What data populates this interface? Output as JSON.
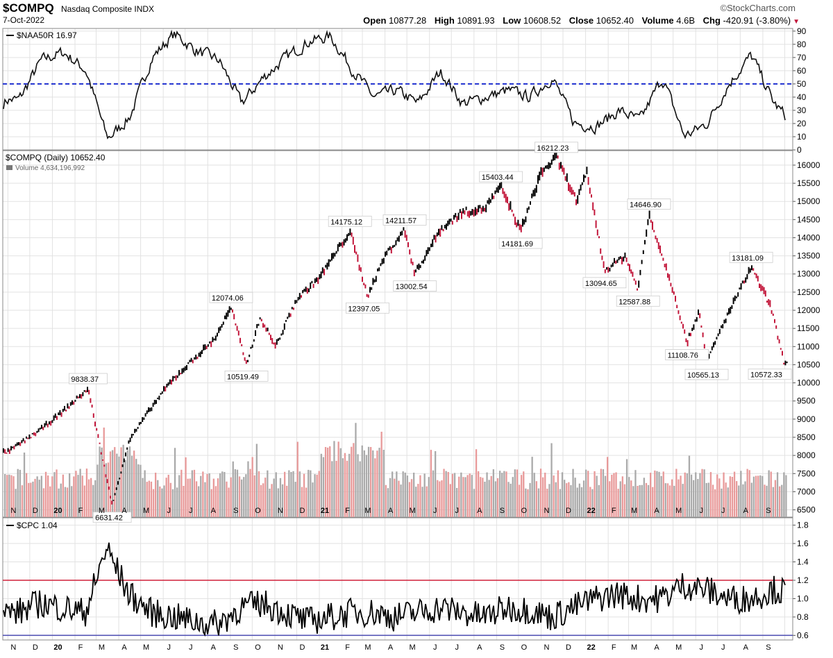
{
  "header": {
    "symbol": "$COMPQ",
    "name": "Nasdaq Composite INDX",
    "date": "7-Oct-2022",
    "brand": "©StockCharts.com",
    "open_label": "Open",
    "open": "10877.28",
    "high_label": "High",
    "high": "10891.93",
    "low_label": "Low",
    "low": "10608.52",
    "close_label": "Close",
    "close": "10652.40",
    "volume_label": "Volume",
    "volume": "4.6B",
    "chg_label": "Chg",
    "chg": "-420.91 (-3.80%)"
  },
  "colors": {
    "up": "#000000",
    "down": "#c2163a",
    "vol_up": "#aaaaaa",
    "vol_down": "#e89a9a",
    "ref_blue": "#1f2fd0",
    "ref_red": "#d0203a",
    "ref_navy": "#4a4ab0",
    "grid": "#e2e2e2"
  },
  "chart_data": [
    {
      "type": "line",
      "legend": "$NAA50R 16.97",
      "y_ticks": [
        0,
        10,
        20,
        30,
        40,
        50,
        60,
        70,
        80,
        90
      ],
      "ylim": [
        0,
        92
      ],
      "reference_line": 50,
      "x": [
        "2019-11",
        "2019-12",
        "2020-01",
        "2020-02",
        "2020-03",
        "2020-04",
        "2020-05",
        "2020-06",
        "2020-07",
        "2020-08",
        "2020-09",
        "2020-10",
        "2020-11",
        "2020-12",
        "2021-01",
        "2021-02",
        "2021-03",
        "2021-04",
        "2021-05",
        "2021-06",
        "2021-07",
        "2021-08",
        "2021-09",
        "2021-10",
        "2021-11",
        "2021-12",
        "2022-01",
        "2022-02",
        "2022-03",
        "2022-04",
        "2022-05",
        "2022-06",
        "2022-07",
        "2022-08",
        "2022-09",
        "2022-10"
      ],
      "values": [
        38,
        68,
        74,
        60,
        8,
        25,
        70,
        88,
        75,
        68,
        35,
        55,
        70,
        82,
        86,
        60,
        40,
        45,
        35,
        60,
        35,
        40,
        45,
        40,
        55,
        20,
        18,
        30,
        22,
        55,
        10,
        20,
        50,
        72,
        35,
        17
      ]
    },
    {
      "type": "line",
      "legend": "$COMPQ (Daily) 10652.40",
      "sublegend": "Volume 4,634,196,992",
      "y_ticks": [
        6500,
        7000,
        7500,
        8000,
        8500,
        9000,
        9500,
        10000,
        10500,
        11000,
        11500,
        12000,
        12500,
        13000,
        13500,
        14000,
        14500,
        15000,
        15500,
        16000
      ],
      "ylim": [
        6300,
        16400
      ],
      "x": [
        "2019-11-01",
        "2019-12-15",
        "2020-01-15",
        "2020-02-19",
        "2020-03-23",
        "2020-04-15",
        "2020-05-15",
        "2020-06-10",
        "2020-07-10",
        "2020-08-10",
        "2020-09-02",
        "2020-09-23",
        "2020-10-12",
        "2020-11-02",
        "2020-12-01",
        "2021-01-01",
        "2021-02-12",
        "2021-03-08",
        "2021-04-01",
        "2021-04-28",
        "2021-05-12",
        "2021-06-15",
        "2021-07-15",
        "2021-08-15",
        "2021-09-07",
        "2021-10-04",
        "2021-11-01",
        "2021-11-22",
        "2021-12-20",
        "2022-01-03",
        "2022-01-27",
        "2022-02-24",
        "2022-03-14",
        "2022-03-29",
        "2022-05-02",
        "2022-05-20",
        "2022-06-06",
        "2022-06-16",
        "2022-07-08",
        "2022-08-16",
        "2022-09-12",
        "2022-09-30",
        "2022-10-07"
      ],
      "values": [
        8100,
        8700,
        9200,
        9838.37,
        6631.42,
        8400,
        9300,
        10000,
        10600,
        11200,
        12074.06,
        10519.49,
        11800,
        11000,
        12300,
        12900,
        14175.12,
        12397.05,
        13500,
        14211.57,
        13002.54,
        14200,
        14700,
        14800,
        15403.44,
        14181.69,
        15800,
        16212.23,
        15000,
        15800,
        13094.65,
        13500,
        12587.88,
        14646.9,
        12500,
        11108.76,
        12000,
        10565.13,
        11600,
        13181.09,
        12100,
        10572.33,
        10652.4
      ],
      "annotations": [
        "9838.37",
        "6631.42",
        "12074.06",
        "10519.49",
        "14175.12",
        "12397.05",
        "14211.57",
        "13002.54",
        "15403.44",
        "14181.69",
        "16212.23",
        "13094.65",
        "12587.88",
        "14646.90",
        "11108.76",
        "10565.13",
        "13181.09",
        "10572.33"
      ]
    },
    {
      "type": "line",
      "legend": "$CPC 1.04",
      "y_ticks": [
        0.6,
        0.8,
        1.0,
        1.2,
        1.4,
        1.6,
        1.8
      ],
      "ylim": [
        0.55,
        1.88
      ],
      "reference_lines": [
        1.2,
        0.6
      ],
      "x": [
        "2019-11",
        "2019-12",
        "2020-01",
        "2020-02",
        "2020-03",
        "2020-04",
        "2020-05",
        "2020-06",
        "2020-07",
        "2020-08",
        "2020-09",
        "2020-10",
        "2020-11",
        "2020-12",
        "2021-01",
        "2021-02",
        "2021-03",
        "2021-04",
        "2021-05",
        "2021-06",
        "2021-07",
        "2021-08",
        "2021-09",
        "2021-10",
        "2021-11",
        "2021-12",
        "2022-01",
        "2022-02",
        "2022-03",
        "2022-04",
        "2022-05",
        "2022-06",
        "2022-07",
        "2022-08",
        "2022-09",
        "2022-10"
      ],
      "values": [
        0.85,
        0.95,
        0.9,
        0.85,
        1.55,
        1.05,
        0.85,
        0.8,
        0.75,
        0.72,
        0.9,
        0.95,
        0.85,
        0.75,
        0.8,
        0.85,
        0.85,
        0.8,
        0.85,
        0.9,
        0.85,
        0.8,
        0.9,
        0.88,
        0.8,
        0.9,
        1.0,
        1.05,
        1.0,
        1.0,
        1.15,
        1.1,
        1.0,
        1.0,
        1.1,
        1.04
      ]
    }
  ],
  "x_axis": [
    "N",
    "D",
    "20",
    "F",
    "M",
    "A",
    "M",
    "J",
    "J",
    "A",
    "S",
    "O",
    "N",
    "D",
    "21",
    "F",
    "M",
    "A",
    "M",
    "J",
    "J",
    "A",
    "S",
    "O",
    "N",
    "D",
    "22",
    "F",
    "M",
    "A",
    "M",
    "J",
    "J",
    "A",
    "S",
    "O"
  ]
}
